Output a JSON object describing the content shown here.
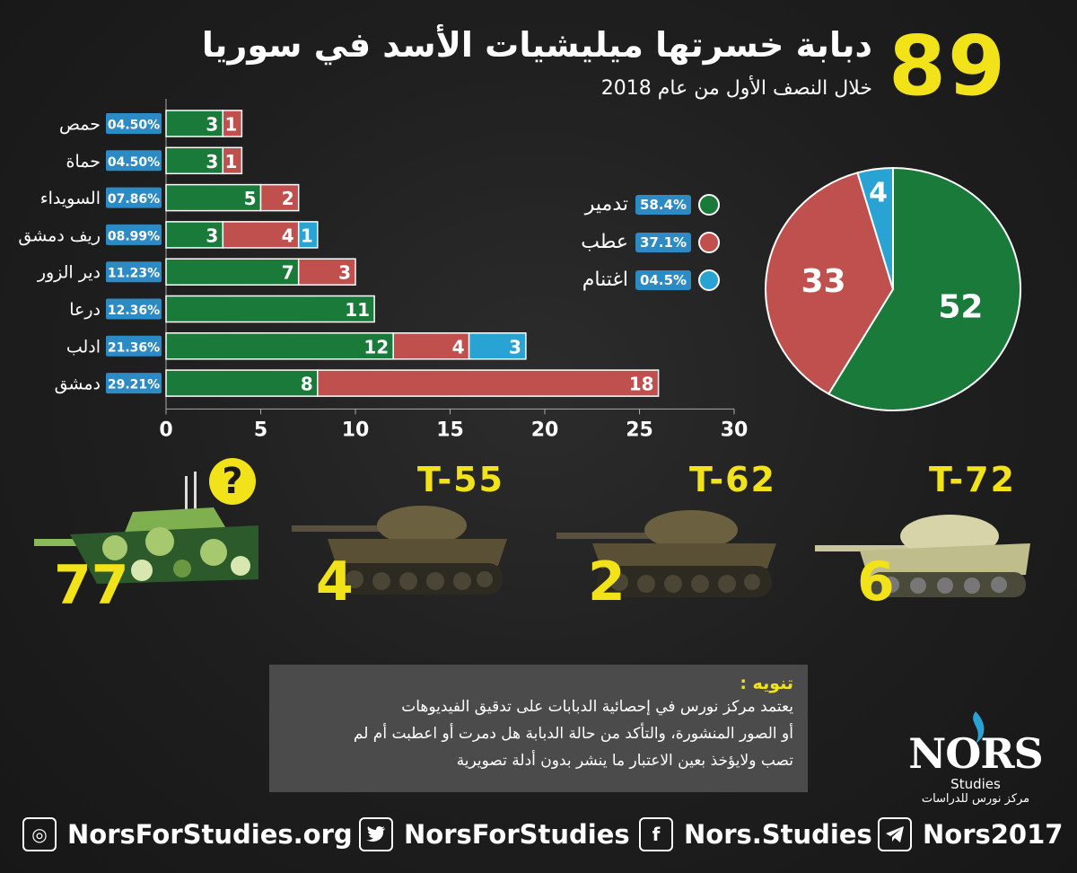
{
  "header": {
    "big_number": "89",
    "title": "دبابة خسرتها ميليشيات الأسد في سوريا",
    "subtitle": "خلال النصف الأول من عام 2018"
  },
  "colors": {
    "destroyed": "#1a7a3a",
    "damaged": "#c0504d",
    "captured": "#29a3d4",
    "accent": "#f2e21a",
    "pct_badge": "#2c8ac4"
  },
  "chart_data": [
    {
      "type": "bar",
      "orientation": "horizontal",
      "stacked": true,
      "categories": [
        "حمص",
        "حماة",
        "السويداء",
        "ريف دمشق",
        "دير الزور",
        "درعا",
        "ادلب",
        "دمشق"
      ],
      "percentages": [
        "04.50%",
        "04.50%",
        "07.86%",
        "08.99%",
        "11.23%",
        "12.36%",
        "21.36%",
        "29.21%"
      ],
      "series": [
        {
          "key": "destroyed",
          "values": [
            3,
            3,
            5,
            3,
            7,
            11,
            12,
            8
          ]
        },
        {
          "key": "damaged",
          "values": [
            1,
            1,
            2,
            4,
            3,
            0,
            4,
            18
          ]
        },
        {
          "key": "captured",
          "values": [
            0,
            0,
            0,
            1,
            0,
            0,
            3,
            0
          ]
        }
      ],
      "xlim": [
        0,
        30
      ],
      "xticks": [
        "0",
        "5",
        "10",
        "15",
        "20",
        "25",
        "30"
      ]
    },
    {
      "type": "pie",
      "labels": [
        "تدمير",
        "عطب",
        "اغتنام"
      ],
      "values": [
        52,
        33,
        4
      ],
      "value_labels": [
        "52",
        "33",
        "4"
      ],
      "percentages": [
        "58.4%",
        "37.1%",
        "04.5%"
      ]
    }
  ],
  "legend": [
    {
      "label": "تدمير",
      "pct": "58.4%",
      "color": "#1a7a3a"
    },
    {
      "label": "عطب",
      "pct": "37.1%",
      "color": "#c0504d"
    },
    {
      "label": "اغتنام",
      "pct": "04.5%",
      "color": "#29a3d4"
    }
  ],
  "tanks": [
    {
      "model": "T-72",
      "count": "6"
    },
    {
      "model": "T-62",
      "count": "2"
    },
    {
      "model": "T-55",
      "count": "4"
    },
    {
      "model": "?",
      "count": "77"
    }
  ],
  "note": {
    "title": "تنويه :",
    "lines": [
      "يعتمد مركز نورس في إحصائية الدبابات على تدقيق الفيديوهات",
      "أو الصور المنشورة، والتأكد من حالة الدبابة هل دمرت أو اعطبت أم لم",
      "تصب ولايؤخذ بعين الاعتبار ما ينشر بدون أدلة تصويرية"
    ]
  },
  "logo": {
    "main": "NORS",
    "sub": "Studies",
    "ar": "مركز نورس للدراسات"
  },
  "footer": [
    {
      "icon": "dribbble-icon",
      "text": "NorsForStudies.org"
    },
    {
      "icon": "twitter-icon",
      "text": "NorsForStudies"
    },
    {
      "icon": "facebook-icon",
      "text": "Nors.Studies"
    },
    {
      "icon": "telegram-icon",
      "text": "Nors2017"
    }
  ]
}
